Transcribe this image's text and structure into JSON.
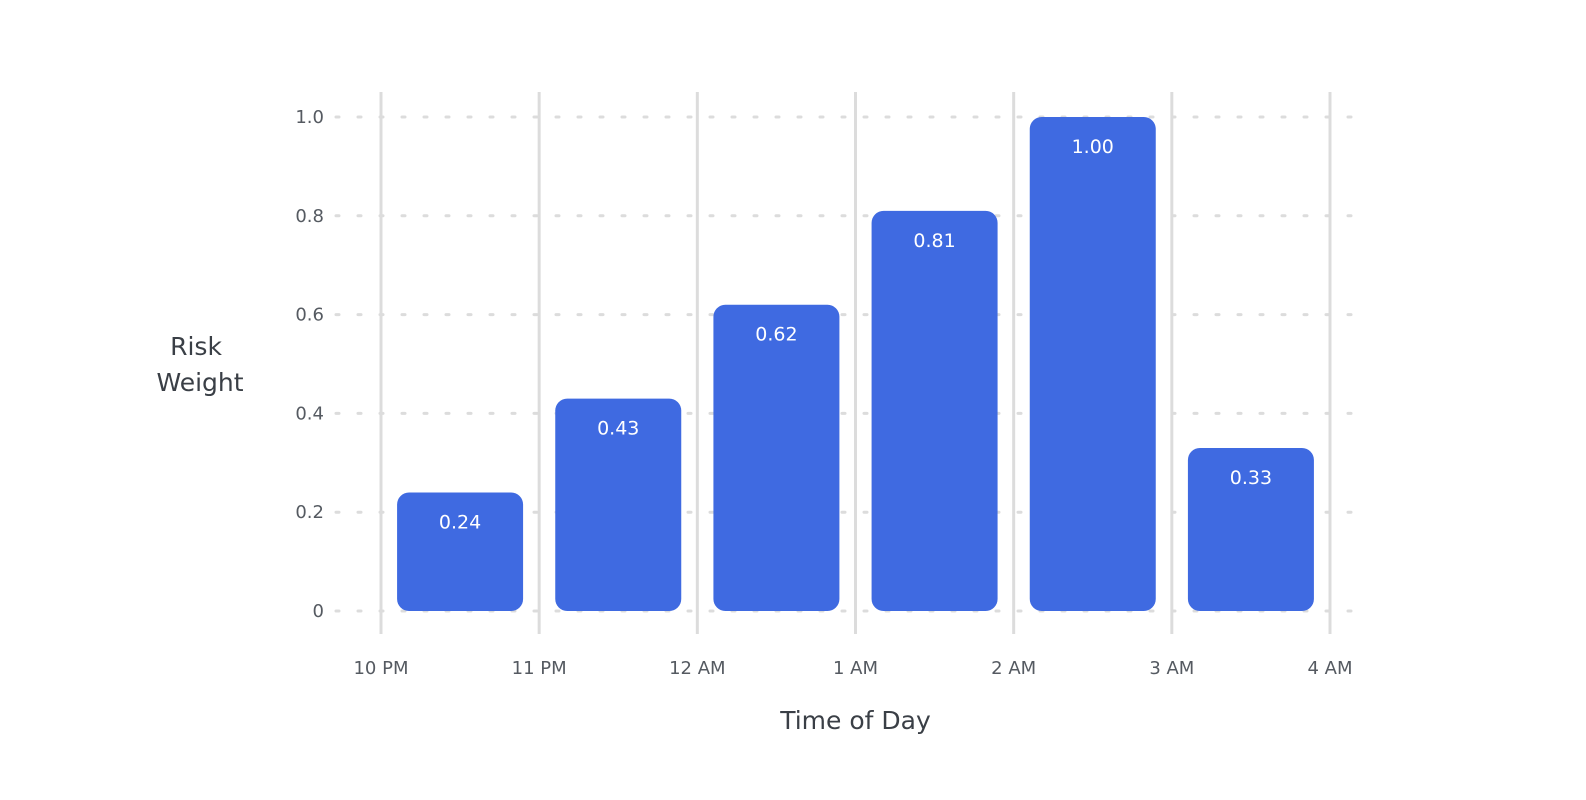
{
  "chart_data": {
    "type": "bar",
    "xlabel": "Time of Day",
    "ylabel_lines": [
      "Risk",
      "Weight"
    ],
    "x_ticks": [
      "10 PM",
      "11 PM",
      "12 AM",
      "1 AM",
      "2 AM",
      "3 AM",
      "4 AM"
    ],
    "series": [
      {
        "values": [
          0.24,
          0.43,
          0.62,
          0.81,
          1.0,
          0.33
        ],
        "labels": [
          "0.24",
          "0.43",
          "0.62",
          "0.81",
          "1.00",
          "0.33"
        ]
      }
    ],
    "ylim": [
      0,
      1.0
    ],
    "y_ticks": [
      0,
      0.2,
      0.4,
      0.6,
      0.8,
      1.0
    ],
    "y_tick_labels": [
      "0",
      "0.2",
      "0.4",
      "0.6",
      "0.8",
      "1.0"
    ],
    "grid": true,
    "bar_color": "#3f6ae1",
    "grid_color": "#dcdcdc"
  }
}
